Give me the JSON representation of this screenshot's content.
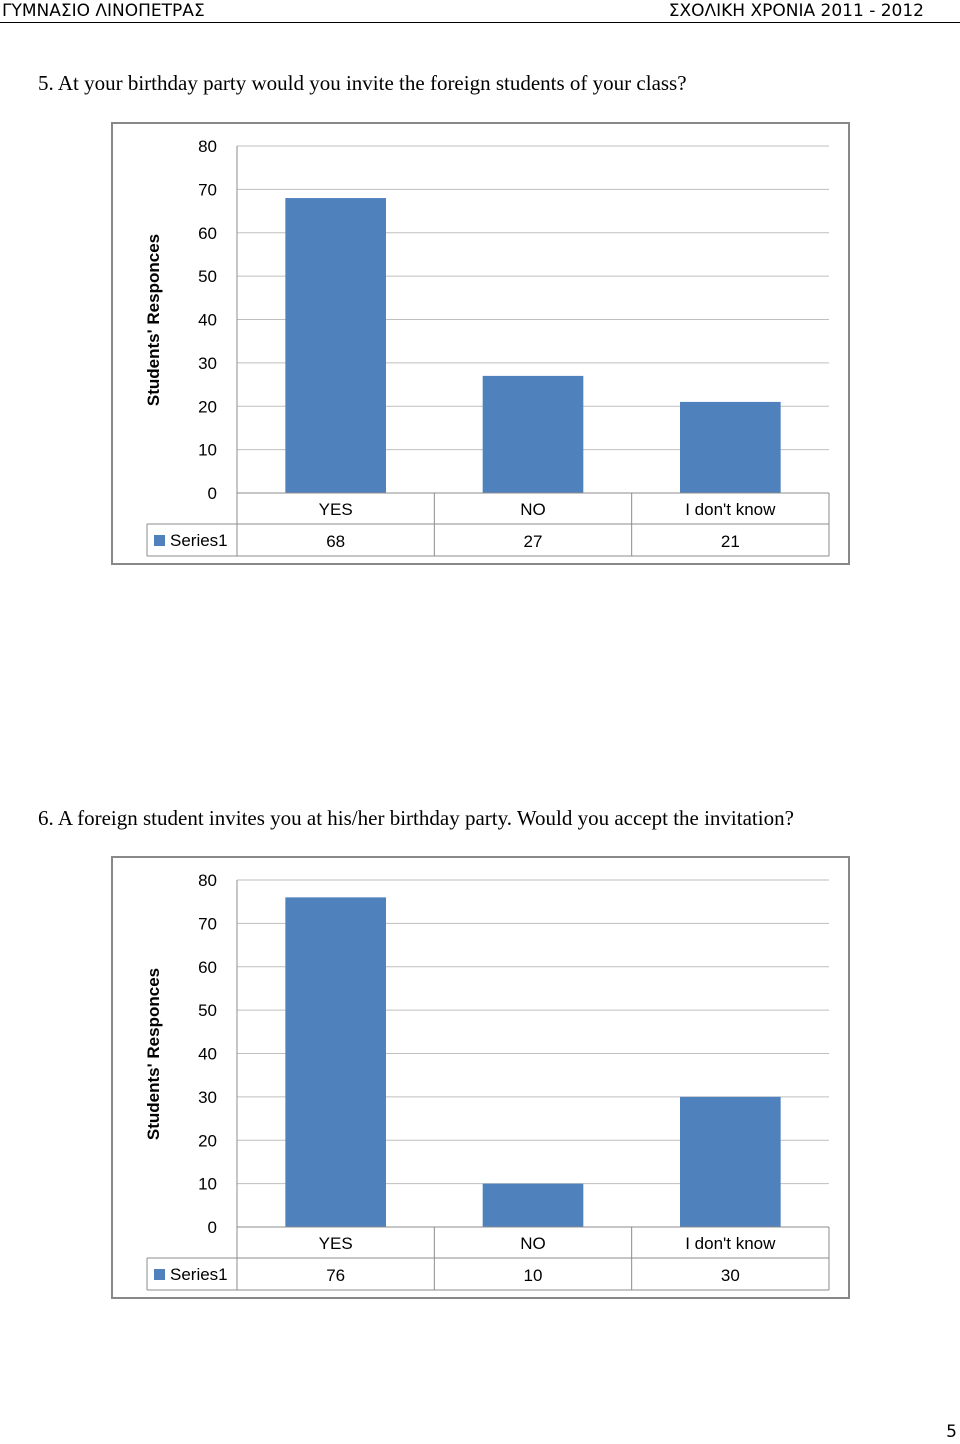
{
  "header": {
    "school": "ΓΥΜΝΑΣΙΟ ΛΙΝΟΠΕΤΡΑΣ",
    "year": "ΣΧΟΛΙΚΗ ΧΡΟΝΙΑ 2011 - 2012"
  },
  "questions": [
    {
      "text": "5.   At your birthday party would you invite the foreign students of your class?"
    },
    {
      "text": "6.   A foreign student invites you at his/her birthday party. Would you accept the invitation?"
    }
  ],
  "chart_data": [
    {
      "type": "bar",
      "categories": [
        "YES",
        "NO",
        "I don't know"
      ],
      "series": [
        {
          "name": "Series1",
          "values": [
            68,
            27,
            21
          ]
        }
      ],
      "ylabel": "Students' Responces",
      "ylim": [
        0,
        80
      ],
      "yticks": [
        0,
        10,
        20,
        30,
        40,
        50,
        60,
        70,
        80
      ],
      "grid": true,
      "legend": "data-table",
      "bar_color": "#4f81bd"
    },
    {
      "type": "bar",
      "categories": [
        "YES",
        "NO",
        "I don't know"
      ],
      "series": [
        {
          "name": "Series1",
          "values": [
            76,
            10,
            30
          ]
        }
      ],
      "ylabel": "Students' Responces",
      "ylim": [
        0,
        80
      ],
      "yticks": [
        0,
        10,
        20,
        30,
        40,
        50,
        60,
        70,
        80
      ],
      "grid": true,
      "legend": "data-table",
      "bar_color": "#4f81bd"
    }
  ],
  "page_number": "5"
}
